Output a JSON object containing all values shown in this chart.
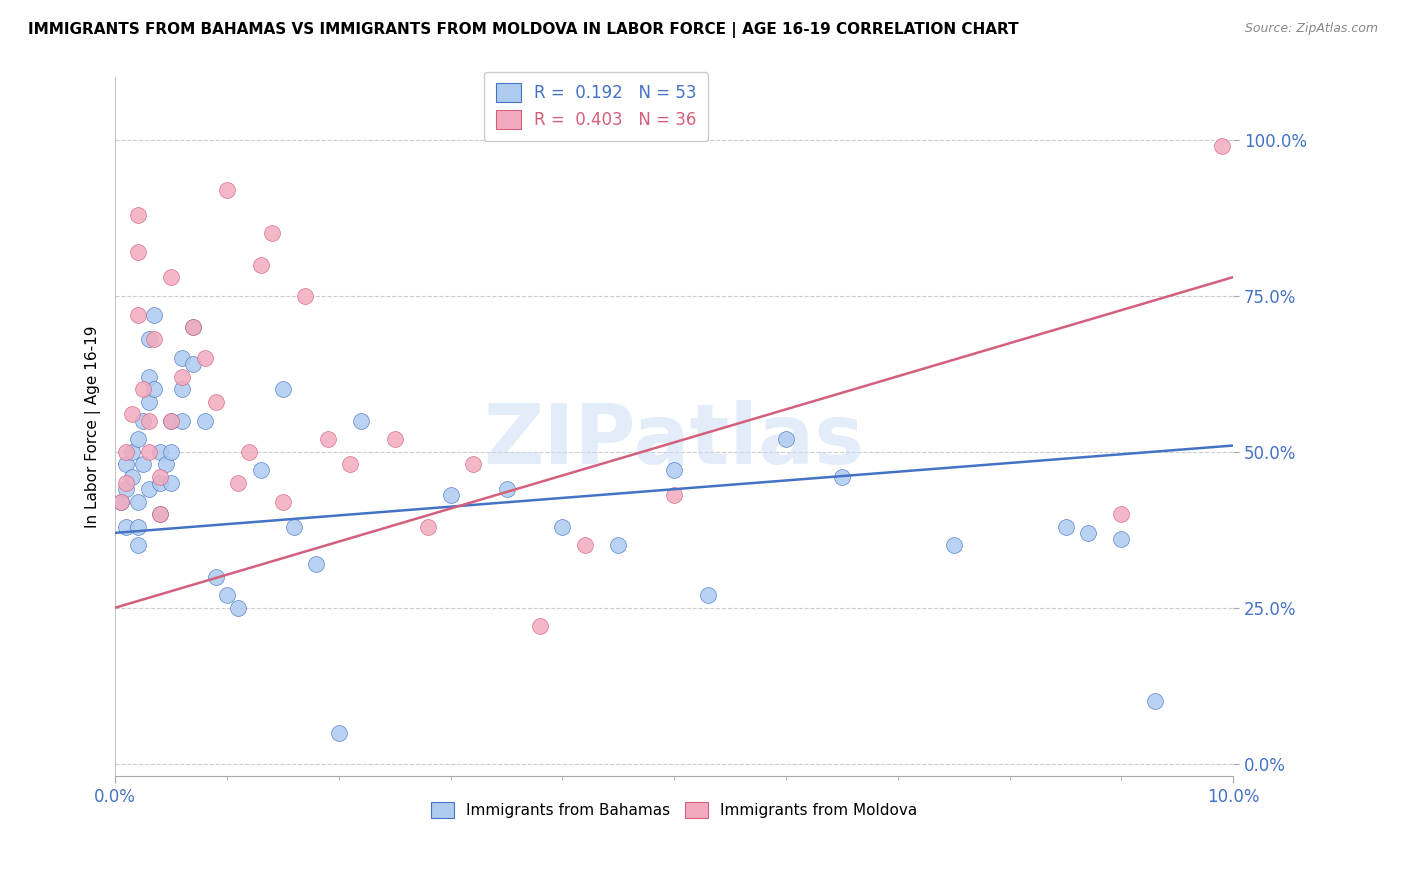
{
  "title": "IMMIGRANTS FROM BAHAMAS VS IMMIGRANTS FROM MOLDOVA IN LABOR FORCE | AGE 16-19 CORRELATION CHART",
  "source": "Source: ZipAtlas.com",
  "ylabel": "In Labor Force | Age 16-19",
  "xlim": [
    0.0,
    0.1
  ],
  "ylim": [
    -0.02,
    1.1
  ],
  "yticks": [
    0.0,
    0.25,
    0.5,
    0.75,
    1.0
  ],
  "ytick_labels": [
    "0.0%",
    "25.0%",
    "50.0%",
    "75.0%",
    "100.0%"
  ],
  "xtick_labels": [
    "0.0%",
    "10.0%"
  ],
  "color_bahamas": "#aecbf0",
  "color_moldova": "#f2abbe",
  "color_bahamas_line": "#4472c4",
  "color_moldova_line": "#d45f7a",
  "color_axis_labels": "#4472c4",
  "watermark": "ZIPatlas",
  "bahamas_x": [
    0.0005,
    0.001,
    0.001,
    0.001,
    0.0015,
    0.0015,
    0.002,
    0.002,
    0.002,
    0.002,
    0.0025,
    0.0025,
    0.003,
    0.003,
    0.003,
    0.003,
    0.0035,
    0.0035,
    0.004,
    0.004,
    0.004,
    0.0045,
    0.005,
    0.005,
    0.005,
    0.006,
    0.006,
    0.006,
    0.007,
    0.007,
    0.008,
    0.009,
    0.01,
    0.011,
    0.013,
    0.015,
    0.016,
    0.018,
    0.02,
    0.022,
    0.03,
    0.035,
    0.04,
    0.045,
    0.05,
    0.053,
    0.06,
    0.065,
    0.075,
    0.085,
    0.087,
    0.09,
    0.093
  ],
  "bahamas_y": [
    0.42,
    0.38,
    0.44,
    0.48,
    0.5,
    0.46,
    0.52,
    0.42,
    0.38,
    0.35,
    0.55,
    0.48,
    0.68,
    0.62,
    0.58,
    0.44,
    0.72,
    0.6,
    0.5,
    0.45,
    0.4,
    0.48,
    0.55,
    0.5,
    0.45,
    0.65,
    0.6,
    0.55,
    0.7,
    0.64,
    0.55,
    0.3,
    0.27,
    0.25,
    0.47,
    0.6,
    0.38,
    0.32,
    0.05,
    0.55,
    0.43,
    0.44,
    0.38,
    0.35,
    0.47,
    0.27,
    0.52,
    0.46,
    0.35,
    0.38,
    0.37,
    0.36,
    0.1
  ],
  "moldova_x": [
    0.0005,
    0.001,
    0.001,
    0.0015,
    0.002,
    0.002,
    0.002,
    0.0025,
    0.003,
    0.003,
    0.0035,
    0.004,
    0.004,
    0.005,
    0.005,
    0.006,
    0.007,
    0.008,
    0.009,
    0.01,
    0.011,
    0.012,
    0.013,
    0.014,
    0.015,
    0.017,
    0.019,
    0.021,
    0.025,
    0.028,
    0.032,
    0.038,
    0.042,
    0.05,
    0.09,
    0.099
  ],
  "moldova_y": [
    0.42,
    0.5,
    0.45,
    0.56,
    0.72,
    0.82,
    0.88,
    0.6,
    0.55,
    0.5,
    0.68,
    0.46,
    0.4,
    0.78,
    0.55,
    0.62,
    0.7,
    0.65,
    0.58,
    0.92,
    0.45,
    0.5,
    0.8,
    0.85,
    0.42,
    0.75,
    0.52,
    0.48,
    0.52,
    0.38,
    0.48,
    0.22,
    0.35,
    0.43,
    0.4,
    0.99
  ],
  "line_bahamas": [
    0.0,
    0.1,
    0.37,
    0.51
  ],
  "line_moldova": [
    0.0,
    0.1,
    0.25,
    0.78
  ]
}
